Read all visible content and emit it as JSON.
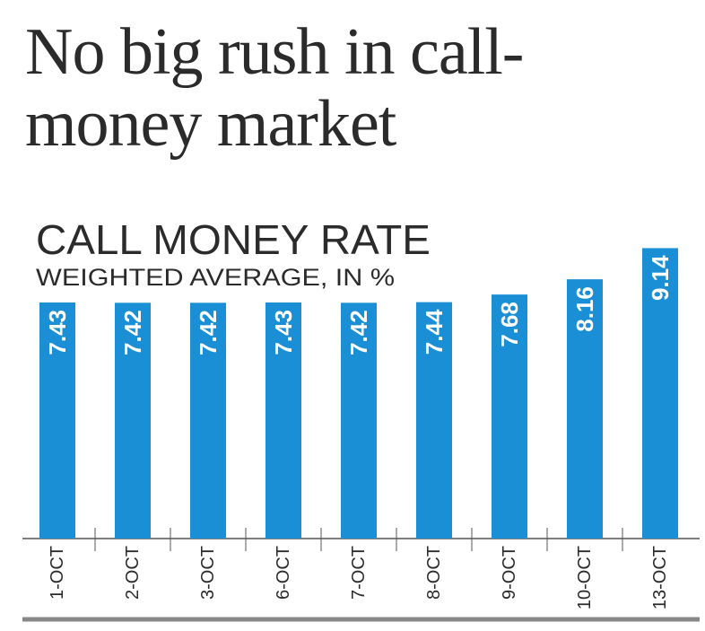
{
  "chart_data": {
    "type": "bar",
    "title": "No big rush in call-money market",
    "subtitle": "CALL MONEY RATE",
    "y_label": "WEIGHTED AVERAGE, IN %",
    "categories": [
      "1-OCT",
      "2-OCT",
      "3-OCT",
      "6-OCT",
      "7-OCT",
      "8-OCT",
      "9-OCT",
      "10-OCT",
      "13-OCT"
    ],
    "values": [
      7.43,
      7.42,
      7.42,
      7.43,
      7.42,
      7.44,
      7.68,
      8.16,
      9.14
    ],
    "color": "#1b8fd5",
    "ylim": [
      0,
      10
    ]
  }
}
